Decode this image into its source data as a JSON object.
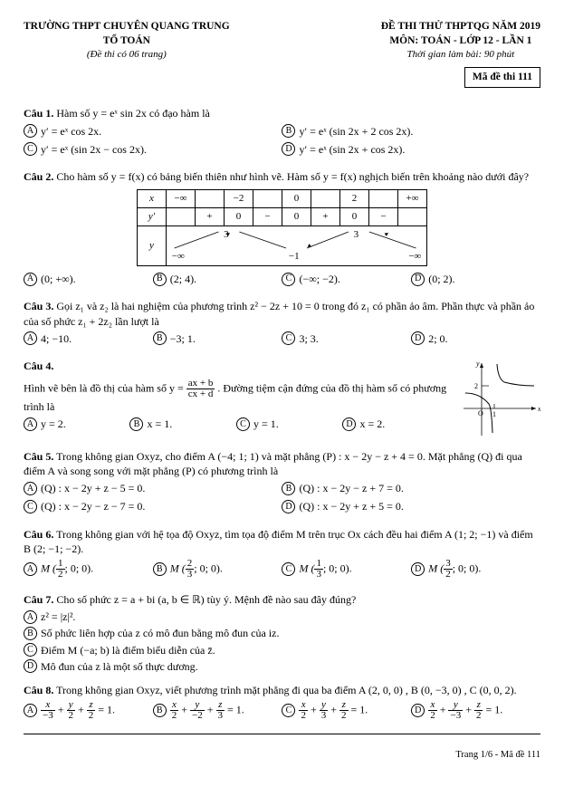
{
  "header": {
    "left": {
      "l1": "TRƯỜNG THPT CHUYÊN QUANG TRUNG",
      "l2": "TỔ TOÁN",
      "l3": "(Đề thi có 06 trang)"
    },
    "right": {
      "l1": "ĐỀ THI THỬ THPTQG NĂM 2019",
      "l2": "MÔN: TOÁN - LỚP 12 - LẦN 1",
      "l3": "Thời gian làm bài: 90 phút"
    },
    "code": "Mã đề thi 111"
  },
  "q1": {
    "label": "Câu 1.",
    "text": " Hàm số y = eˣ sin 2x có đạo hàm là",
    "A": "y′ = eˣ cos 2x.",
    "B": "y′ = eˣ (sin 2x + 2 cos 2x).",
    "C": "y′ = eˣ (sin 2x − cos 2x).",
    "D": "y′ = eˣ (sin 2x + cos 2x)."
  },
  "q2": {
    "label": "Câu 2.",
    "text": " Cho hàm số y = f(x) có bảng biến thiên như hình vẽ. Hàm số y = f(x) nghịch biến trên khoảng nào dưới đây?",
    "tbl": {
      "xrow": [
        "x",
        "−∞",
        "",
        "−2",
        "",
        "0",
        "",
        "2",
        "",
        "+∞"
      ],
      "yprow": [
        "y′",
        "",
        "+",
        "0",
        "−",
        "0",
        "+",
        "0",
        "−",
        ""
      ],
      "yrow_top": [
        "",
        "",
        "3",
        "",
        "",
        "",
        "3",
        "",
        ""
      ],
      "yrow_bot": [
        "−∞",
        "",
        "",
        "",
        "−1",
        "",
        "",
        "",
        "−∞"
      ]
    },
    "A": "(0; +∞).",
    "B": "(2; 4).",
    "C": "(−∞; −2).",
    "D": "(0; 2)."
  },
  "q3": {
    "label": "Câu 3.",
    "text1": " Gọi z₁ và z₂ là hai nghiệm của phương trình z² − 2z + 10 = 0 trong đó z₁ có phần ảo âm. Phần thực và phần ảo của số phức z₁ + 2z₂ lần lượt là",
    "A": "4; −10.",
    "B": "−3; 1.",
    "C": "3; 3.",
    "D": "2; 0."
  },
  "q4": {
    "label": "Câu 4.",
    "text1": "Hình vẽ bên là đồ thị của hàm số y = ",
    "frac": {
      "n": "ax + b",
      "d": "cx + d"
    },
    "text2": ". Đường tiệm cận đứng của đồ thị hàm số có phương trình là",
    "A": "y = 2.",
    "B": "x = 1.",
    "C": "y = 1.",
    "D": "x = 2.",
    "graph": {
      "ytick": "2",
      "xtick": "1",
      "colors": {
        "axis": "#000",
        "curve": "#000"
      }
    }
  },
  "q5": {
    "label": "Câu 5.",
    "text": " Trong không gian Oxyz, cho điểm A (−4; 1; 1) và mặt phẳng (P) : x − 2y − z + 4 = 0. Mặt phẳng (Q) đi qua điểm A và song song với mặt phẳng (P) có phương trình là",
    "A": "(Q) : x − 2y + z − 5 = 0.",
    "B": "(Q) : x − 2y − z + 7 = 0.",
    "C": "(Q) : x − 2y − z − 7 = 0.",
    "D": "(Q) : x − 2y + z + 5 = 0."
  },
  "q6": {
    "label": "Câu 6.",
    "text": " Trong không gian với hệ tọa độ Oxyz, tìm tọa độ điểm M trên trục Ox cách đều hai điểm A (1; 2; −1) và điểm B (2; −1; −2).",
    "A": {
      "pre": "M (",
      "n": "1",
      "d": "2",
      "post": "; 0; 0)."
    },
    "B": {
      "pre": "M (",
      "n": "2",
      "d": "3",
      "post": "; 0; 0)."
    },
    "C": {
      "pre": "M (",
      "n": "1",
      "d": "3",
      "post": "; 0; 0)."
    },
    "D": {
      "pre": "M (",
      "n": "3",
      "d": "2",
      "post": "; 0; 0)."
    }
  },
  "q7": {
    "label": "Câu 7.",
    "text": " Cho số phức z = a + bi   (a, b ∈ ℝ) tùy ý. Mệnh đề nào sau đây đúng?",
    "A": "z² = |z|².",
    "B": "Số phức liên hợp của z có mô đun bằng mô đun của iz.",
    "C": "Điểm M (−a; b) là điểm biểu diễn của z̄.",
    "D": "Mô đun của z là một số thực dương."
  },
  "q8": {
    "label": "Câu 8.",
    "text": " Trong không gian Oxyz, viết phương trình mặt phẳng đi qua ba điểm A (2, 0, 0) , B (0, −3, 0) , C (0, 0, 2).",
    "A": {
      "terms": [
        {
          "n": "x",
          "d": "−3"
        },
        {
          "n": "y",
          "d": "2"
        },
        {
          "n": "z",
          "d": "2"
        }
      ],
      "eq": " = 1."
    },
    "B": {
      "terms": [
        {
          "n": "x",
          "d": "2"
        },
        {
          "n": "y",
          "d": "−2"
        },
        {
          "n": "z",
          "d": "3"
        }
      ],
      "eq": " = 1."
    },
    "C": {
      "terms": [
        {
          "n": "x",
          "d": "2"
        },
        {
          "n": "y",
          "d": "3"
        },
        {
          "n": "z",
          "d": "2"
        }
      ],
      "eq": " = 1."
    },
    "D": {
      "terms": [
        {
          "n": "x",
          "d": "2"
        },
        {
          "n": "y",
          "d": "−3"
        },
        {
          "n": "z",
          "d": "2"
        }
      ],
      "eq": " = 1."
    }
  },
  "footer": "Trang 1/6 - Mã đề 111"
}
